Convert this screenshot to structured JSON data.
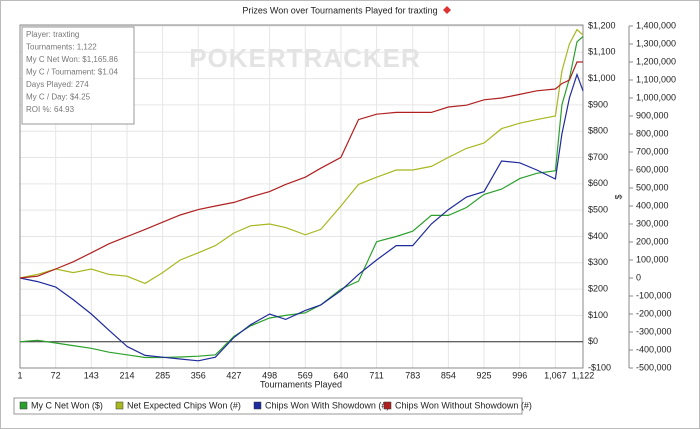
{
  "chart_data": {
    "type": "line",
    "title": "Prizes Won over Tournaments Played for traxting",
    "watermark": "POKERTRACKER",
    "xlabel": "Tournaments Played",
    "ylabel": "$",
    "info": [
      "Player: traxting",
      "Tournaments: 1,122",
      "My C Net Won: $1,165.86",
      "My C / Tournament: $1.04",
      "Days Played: 274",
      "My C / Day: $4.25",
      "ROI %: 64.93"
    ],
    "x": [
      1,
      36,
      72,
      107,
      143,
      178,
      214,
      250,
      285,
      320,
      356,
      390,
      427,
      460,
      498,
      530,
      569,
      600,
      640,
      675,
      711,
      750,
      783,
      820,
      854,
      890,
      925,
      960,
      996,
      1030,
      1067,
      1080,
      1095,
      1110,
      1122
    ],
    "xlim": [
      1,
      1122
    ],
    "xticks": [
      1,
      72,
      143,
      214,
      285,
      356,
      427,
      498,
      569,
      640,
      711,
      783,
      854,
      925,
      996,
      {
        "value": 1067,
        "label": "1,067"
      },
      {
        "value": 1122,
        "label": "1,122"
      }
    ],
    "ylim": [
      -100,
      1200
    ],
    "yticks": [
      {
        "value": -100,
        "label": "-$100"
      },
      {
        "value": 0,
        "label": "$0"
      },
      {
        "value": 100,
        "label": "$100"
      },
      {
        "value": 200,
        "label": "$200"
      },
      {
        "value": 300,
        "label": "$300"
      },
      {
        "value": 400,
        "label": "$400"
      },
      {
        "value": 500,
        "label": "$500"
      },
      {
        "value": 600,
        "label": "$600"
      },
      {
        "value": 700,
        "label": "$700"
      },
      {
        "value": 800,
        "label": "$800"
      },
      {
        "value": 900,
        "label": "$900"
      },
      {
        "value": 1000,
        "label": "$1,000"
      },
      {
        "value": 1100,
        "label": "$1,100"
      },
      {
        "value": 1200,
        "label": "$1,200"
      }
    ],
    "y2lim": [
      -500000,
      1400000
    ],
    "y2ticks": [
      {
        "value": -500000,
        "label": "-500,000"
      },
      {
        "value": -400000,
        "label": "-400,000"
      },
      {
        "value": -300000,
        "label": "-300,000"
      },
      {
        "value": -200000,
        "label": "-200,000"
      },
      {
        "value": -100000,
        "label": "-100,000"
      },
      0,
      {
        "value": 100000,
        "label": "100,000"
      },
      {
        "value": 200000,
        "label": "200,000"
      },
      {
        "value": 300000,
        "label": "300,000"
      },
      {
        "value": 400000,
        "label": "400,000"
      },
      {
        "value": 500000,
        "label": "500,000"
      },
      {
        "value": 600000,
        "label": "600,000"
      },
      {
        "value": 700000,
        "label": "700,000"
      },
      {
        "value": 800000,
        "label": "800,000"
      },
      {
        "value": 900000,
        "label": "900,000"
      },
      {
        "value": 1000000,
        "label": "1,000,000"
      },
      {
        "value": 1100000,
        "label": "1,100,000"
      },
      {
        "value": 1200000,
        "label": "1,200,000"
      },
      {
        "value": 1300000,
        "label": "1,300,000"
      },
      {
        "value": 1400000,
        "label": "1,400,000"
      }
    ],
    "grid": true,
    "series": [
      {
        "name": "My C Net Won ($)",
        "color": "#2ca02c",
        "values": [
          0,
          5,
          -5,
          -15,
          -25,
          -40,
          -50,
          -60,
          -60,
          -58,
          -55,
          -50,
          20,
          60,
          90,
          100,
          110,
          140,
          200,
          230,
          380,
          400,
          420,
          480,
          480,
          510,
          560,
          580,
          620,
          640,
          650,
          900,
          1000,
          1140,
          1160
        ]
      },
      {
        "name": "Net Expected Chips Won (#)",
        "color": "#a8b820",
        "values": [
          0,
          20,
          50,
          30,
          50,
          20,
          10,
          -30,
          30,
          100,
          140,
          180,
          250,
          290,
          300,
          280,
          240,
          270,
          400,
          520,
          560,
          600,
          600,
          620,
          670,
          720,
          750,
          830,
          860,
          880,
          900,
          1150,
          1300,
          1380,
          1350
        ],
        "axis": "y2"
      },
      {
        "name": "Chips Won With Showdown (#)",
        "color": "#1f2a9c",
        "values": [
          0,
          -20,
          -50,
          -120,
          -200,
          -290,
          -380,
          -430,
          -440,
          -450,
          -460,
          -440,
          -330,
          -260,
          -200,
          -230,
          -180,
          -150,
          -70,
          20,
          100,
          180,
          180,
          300,
          380,
          450,
          480,
          650,
          640,
          600,
          550,
          800,
          1000,
          1130,
          1040
        ],
        "axis": "y2"
      },
      {
        "name": "Chips Won Without Showdown (#)",
        "color": "#b02020",
        "values": [
          0,
          10,
          50,
          90,
          140,
          190,
          230,
          270,
          310,
          350,
          380,
          400,
          420,
          450,
          480,
          520,
          560,
          610,
          670,
          880,
          910,
          920,
          920,
          920,
          950,
          960,
          990,
          1000,
          1020,
          1040,
          1050,
          1080,
          1100,
          1200,
          1200
        ],
        "axis": "y2"
      }
    ],
    "series_scale": {
      "y2": 1000
    }
  }
}
